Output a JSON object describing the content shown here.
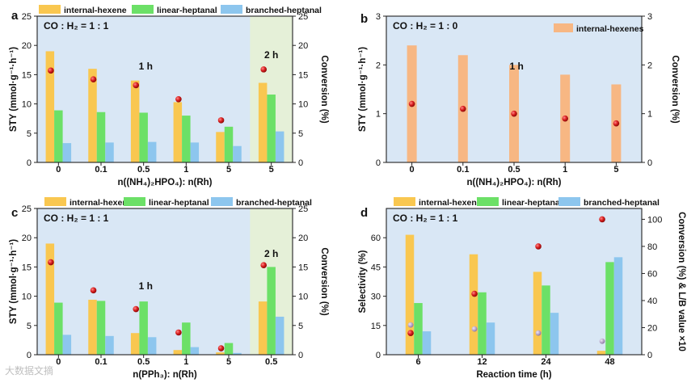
{
  "watermark": "大数据文摘",
  "colors": {
    "internal": "#F9C750",
    "linear": "#6CE067",
    "branched": "#8DC6EE",
    "single": "#F7B783",
    "dot": "#D81E1E",
    "lbdot": "#B7A6C9",
    "bg": "#D9E7F5",
    "hl": "#E5F0D8"
  },
  "chart_data": [
    {
      "panel": "a",
      "type": "bar",
      "annotation": "CO : H₂ = 1 : 1",
      "time_labels": [
        "1 h",
        "2 h"
      ],
      "xlabel": "n((NH₄)₂HPO₄): n(Rh)",
      "ylabel": "STY (mmol·g⁻¹·h⁻¹)",
      "y2label": "Conversion (%)",
      "ylim": [
        0,
        25
      ],
      "yticks": [
        0,
        5,
        10,
        15,
        20,
        25
      ],
      "y2lim": [
        0,
        25
      ],
      "y2ticks": [
        0,
        5,
        10,
        15,
        20,
        25
      ],
      "categories": [
        "0",
        "0.1",
        "0.5",
        "1",
        "5",
        "5"
      ],
      "highlight_last": true,
      "series": [
        {
          "name": "internal-hexene",
          "values": [
            19.0,
            16.0,
            14.0,
            10.3,
            5.2,
            13.6
          ]
        },
        {
          "name": "linear-heptanal",
          "values": [
            8.9,
            8.6,
            8.5,
            8.0,
            6.1,
            11.6
          ]
        },
        {
          "name": "branched-heptanal",
          "values": [
            3.3,
            3.4,
            3.5,
            3.4,
            2.8,
            5.3
          ]
        }
      ],
      "conversion": [
        15.7,
        14.2,
        13.2,
        10.8,
        7.2,
        15.9
      ]
    },
    {
      "panel": "b",
      "type": "bar",
      "annotation": "CO : H₂ = 1 : 0",
      "time_labels": [
        "1 h"
      ],
      "xlabel": "n((NH₄)₂HPO₄): n(Rh)",
      "ylabel": "STY (mmol·g⁻¹·h⁻¹)",
      "y2label": "Conversion (%)",
      "ylim": [
        0,
        3
      ],
      "yticks": [
        0,
        1,
        2,
        3
      ],
      "y2lim": [
        0,
        3
      ],
      "y2ticks": [
        0,
        1,
        2,
        3
      ],
      "categories": [
        "0",
        "0.1",
        "0.5",
        "1",
        "5"
      ],
      "highlight_last": false,
      "series": [
        {
          "name": "internal-hexenes",
          "values": [
            2.4,
            2.2,
            2.0,
            1.8,
            1.6
          ]
        }
      ],
      "conversion": [
        1.2,
        1.1,
        1.0,
        0.9,
        0.8
      ]
    },
    {
      "panel": "c",
      "type": "bar",
      "annotation": "CO : H₂ = 1 : 1",
      "time_labels": [
        "1 h",
        "2 h"
      ],
      "xlabel": "n(PPh₃): n(Rh)",
      "ylabel": "STY (mmol·g⁻¹·h⁻¹)",
      "y2label": "Conversion (%)",
      "ylim": [
        0,
        25
      ],
      "yticks": [
        0,
        5,
        10,
        15,
        20,
        25
      ],
      "y2lim": [
        0,
        25
      ],
      "y2ticks": [
        0,
        5,
        10,
        15,
        20,
        25
      ],
      "categories": [
        "0",
        "0.1",
        "0.5",
        "1",
        "5",
        "0.5"
      ],
      "highlight_last": true,
      "series": [
        {
          "name": "internal-hexene",
          "values": [
            19.0,
            9.4,
            3.7,
            0.8,
            0.4,
            9.1
          ]
        },
        {
          "name": "linear-heptanal",
          "values": [
            8.9,
            9.2,
            9.1,
            5.5,
            2.0,
            15.0
          ]
        },
        {
          "name": "branched-heptanal",
          "values": [
            3.4,
            3.2,
            3.0,
            1.3,
            0.3,
            6.5
          ]
        }
      ],
      "conversion": [
        15.8,
        11.0,
        7.8,
        3.8,
        1.1,
        15.3
      ]
    },
    {
      "panel": "d",
      "type": "bar",
      "annotation": "CO : H₂ = 1 : 1",
      "time_labels": [],
      "xlabel": "Reaction time (h)",
      "ylabel": "Selectivity (%)",
      "y2label": "Conversion (%) & L/B value ×10",
      "ylim": [
        0,
        75
      ],
      "yticks": [
        0,
        15,
        30,
        45,
        60
      ],
      "y2lim": [
        0,
        108
      ],
      "y2ticks": [
        0,
        20,
        40,
        60,
        80,
        100
      ],
      "categories": [
        "6",
        "12",
        "24",
        "48"
      ],
      "highlight_last": false,
      "series": [
        {
          "name": "internal-hexene",
          "values": [
            61.5,
            51.5,
            42.5,
            2.0
          ]
        },
        {
          "name": "linear-heptanal",
          "values": [
            26.5,
            32.0,
            35.5,
            47.5
          ]
        },
        {
          "name": "branched-heptanal",
          "values": [
            12.0,
            16.5,
            21.5,
            50.0
          ]
        }
      ],
      "conversion": [
        16,
        45,
        80,
        100
      ],
      "lb_ratio_x10": [
        22,
        19,
        16,
        10
      ]
    }
  ]
}
